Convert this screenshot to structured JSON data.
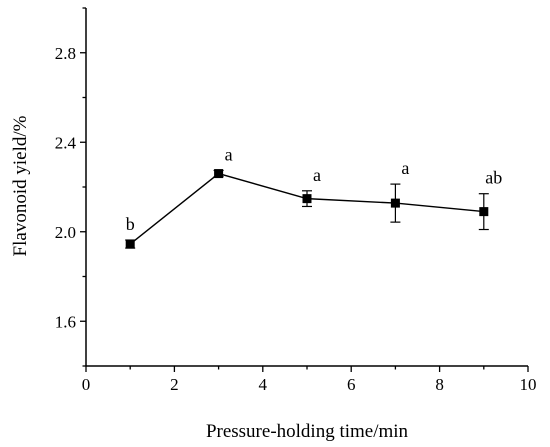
{
  "chart_data": {
    "type": "line",
    "title": "",
    "xlabel": "Pressure-holding time/min",
    "ylabel": "Flavonoid yield/%",
    "xlim": [
      0,
      10
    ],
    "ylim": [
      1.4,
      3.0
    ],
    "x_ticks": [
      0,
      2,
      4,
      6,
      8,
      10
    ],
    "x_tick_labels": [
      "0",
      "2",
      "4",
      "6",
      "8",
      "10"
    ],
    "y_ticks": [
      1.6,
      2.0,
      2.4,
      2.8
    ],
    "y_tick_labels": [
      "1.6",
      "2.0",
      "2.4",
      "2.8"
    ],
    "grid": false,
    "legend": "none",
    "series": [
      {
        "x": [
          1,
          3,
          5,
          7,
          9
        ],
        "values": [
          1.945,
          2.26,
          2.148,
          2.128,
          2.09
        ],
        "errors": [
          0.018,
          0.014,
          0.035,
          0.085,
          0.08
        ],
        "labels": [
          "b",
          "a",
          "a",
          "a",
          "ab"
        ],
        "marker": "square",
        "color": "#000000"
      }
    ]
  }
}
